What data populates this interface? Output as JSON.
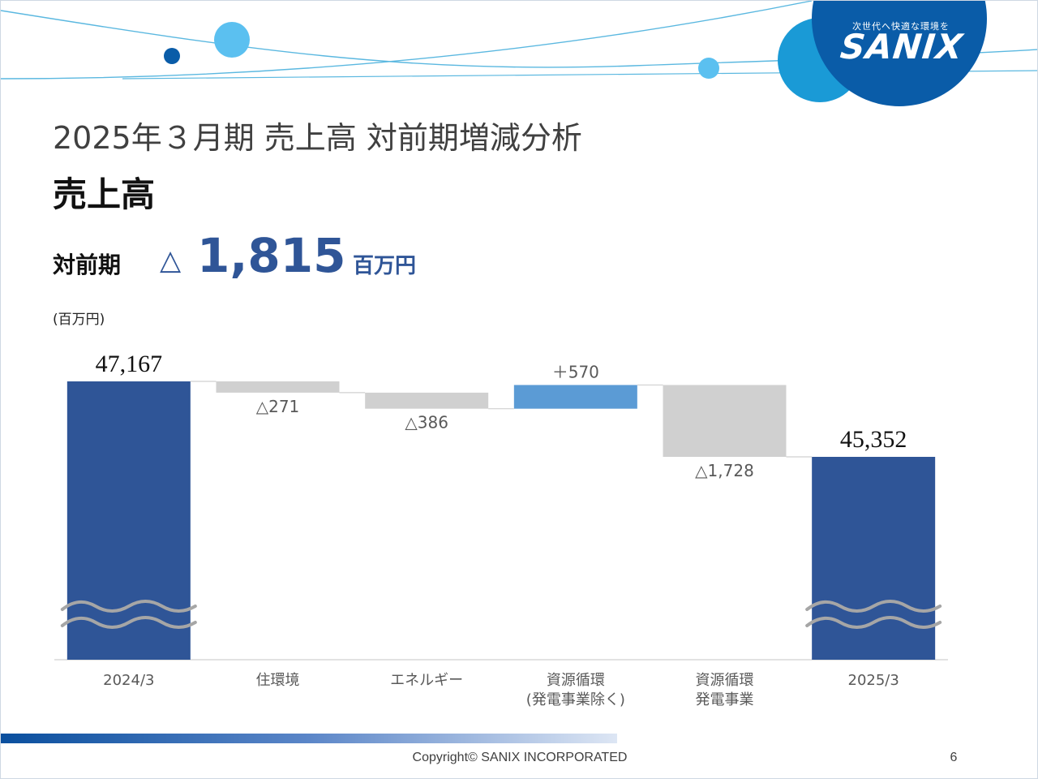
{
  "logo": {
    "tagline": "次世代へ快適な環境を",
    "name": "SANIX"
  },
  "page": {
    "title": "2025年３月期 売上高 対前期増減分析",
    "section_title": "売上高",
    "yoy_label": "対前期",
    "yoy_triangle": "△",
    "yoy_value": "1,815",
    "yoy_unit": "百万円",
    "unit_note": "(百万円)"
  },
  "colors": {
    "total": "#2f5597",
    "decrease": "#d0d0d0",
    "increase": "#5b9bd5",
    "accent": "#2f5597",
    "light_blue": "#5bc0f0",
    "mid_blue": "#1a9ad6",
    "dark_blue": "#0a5ca8"
  },
  "chart_data": {
    "type": "bar",
    "subtype": "waterfall",
    "unit": "百万円",
    "y_axis_break": true,
    "categories": [
      [
        "2024/3"
      ],
      [
        "住環境"
      ],
      [
        "エネルギー"
      ],
      [
        "資源循環",
        "(発電事業除く)"
      ],
      [
        "資源循環",
        "発電事業"
      ],
      [
        "2025/3"
      ]
    ],
    "steps": [
      {
        "kind": "total",
        "value": 47167,
        "label": "47,167"
      },
      {
        "kind": "decrease",
        "value": -271,
        "label": "△271"
      },
      {
        "kind": "decrease",
        "value": -386,
        "label": "△386"
      },
      {
        "kind": "increase",
        "value": 570,
        "label": "＋570"
      },
      {
        "kind": "decrease",
        "value": -1728,
        "label": "△1,728"
      },
      {
        "kind": "total",
        "value": 45352,
        "label": "45,352"
      }
    ]
  },
  "footer": {
    "copyright": "Copyright©  SANIX INCORPORATED",
    "page_number": "6"
  }
}
